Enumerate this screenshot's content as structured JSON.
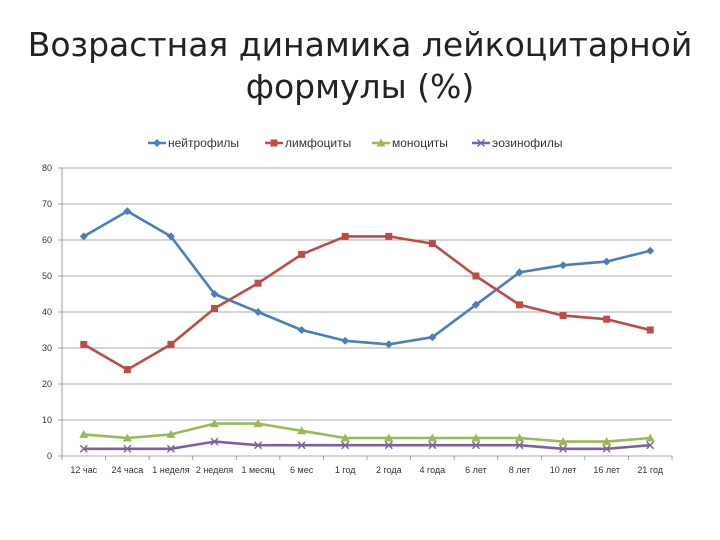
{
  "chart_data": {
    "type": "line",
    "title_line1": "Возрастная динамика лейкоцитарной",
    "title_line2": "формулы (%)",
    "categories": [
      "12 час",
      "24 часа",
      "1 неделя",
      "2 неделя",
      "1 месяц",
      "6 мес",
      "1 год",
      "2 года",
      "4 года",
      "6 лет",
      "8 лет",
      "10 лет",
      "16 лет",
      "21 год"
    ],
    "ylim": [
      0,
      80
    ],
    "yticks": [
      "0",
      "10",
      "20",
      "30",
      "40",
      "50",
      "60",
      "70",
      "80"
    ],
    "legend_position": "top",
    "grid": true,
    "series": [
      {
        "name": "нейтрофилы",
        "color": "#4a7ebb",
        "marker": "diamond",
        "values": [
          61,
          68,
          61,
          45,
          40,
          35,
          32,
          31,
          33,
          42,
          51,
          53,
          54,
          57
        ]
      },
      {
        "name": "лимфоциты",
        "color": "#be4b48",
        "marker": "square",
        "values": [
          31,
          24,
          31,
          41,
          48,
          56,
          61,
          61,
          59,
          50,
          42,
          39,
          38,
          35
        ]
      },
      {
        "name": "моноциты",
        "color": "#98b954",
        "marker": "triangle",
        "values": [
          6,
          5,
          6,
          9,
          9,
          7,
          5,
          5,
          5,
          5,
          5,
          4,
          4,
          5
        ]
      },
      {
        "name": "эозинофилы",
        "color": "#7d60a0",
        "marker": "x",
        "values": [
          2,
          2,
          2,
          4,
          3,
          3,
          3,
          3,
          3,
          3,
          3,
          2,
          2,
          3
        ]
      }
    ]
  }
}
